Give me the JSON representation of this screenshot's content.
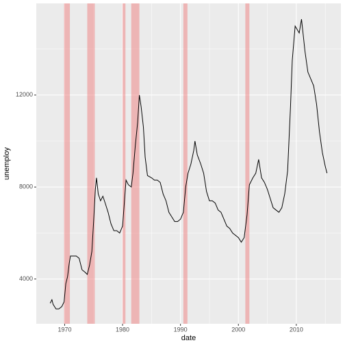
{
  "chart_data": {
    "type": "line",
    "x_label": "date",
    "y_label": "unemploy",
    "xlim": [
      1965.1,
      2017.7
    ],
    "ylim": [
      2052,
      15985
    ],
    "xticks": [
      1970,
      1980,
      1990,
      2000,
      2010
    ],
    "yticks": [
      4000,
      8000,
      12000
    ],
    "grid": true,
    "recession_color": "#f08080",
    "recessions": [
      [
        1969.9,
        1970.9
      ],
      [
        1973.9,
        1975.2
      ],
      [
        1980.0,
        1980.5
      ],
      [
        1981.5,
        1982.9
      ],
      [
        1990.5,
        1991.2
      ],
      [
        2001.2,
        2001.9
      ]
    ],
    "series": [
      {
        "name": "unemploy",
        "color": "#000000",
        "x": [
          1967.5,
          1967.8,
          1968.0,
          1968.5,
          1969.0,
          1969.5,
          1969.9,
          1970.2,
          1970.5,
          1970.8,
          1971.0,
          1971.5,
          1972.0,
          1972.5,
          1973.0,
          1973.5,
          1973.9,
          1974.3,
          1974.7,
          1975.0,
          1975.3,
          1975.5,
          1975.8,
          1976.2,
          1976.6,
          1977.0,
          1977.5,
          1978.0,
          1978.5,
          1979.0,
          1979.5,
          1980.0,
          1980.3,
          1980.6,
          1981.0,
          1981.5,
          1981.8,
          1982.2,
          1982.6,
          1982.9,
          1983.2,
          1983.6,
          1983.9,
          1984.3,
          1985.0,
          1985.5,
          1986.0,
          1986.5,
          1987.0,
          1987.5,
          1988.0,
          1988.5,
          1989.0,
          1989.5,
          1990.0,
          1990.5,
          1990.9,
          1991.3,
          1991.8,
          1992.3,
          1992.5,
          1992.9,
          1993.5,
          1994.0,
          1994.5,
          1995.0,
          1995.5,
          1996.0,
          1996.5,
          1997.0,
          1997.5,
          1998.0,
          1998.5,
          1999.0,
          1999.5,
          2000.0,
          2000.5,
          2001.0,
          2001.5,
          2001.9,
          2002.5,
          2003.0,
          2003.5,
          2004.0,
          2004.5,
          2005.0,
          2005.5,
          2006.0,
          2006.5,
          2007.0,
          2007.5,
          2008.0,
          2008.5,
          2009.0,
          2009.3,
          2009.8,
          2010.5,
          2010.9,
          2011.5,
          2012.0,
          2012.5,
          2013.0,
          2013.5,
          2014.0,
          2014.5,
          2015.0,
          2015.3
        ],
        "values": [
          2944,
          3100,
          2900,
          2700,
          2700,
          2800,
          3000,
          3800,
          4100,
          4700,
          5000,
          5000,
          5000,
          4900,
          4400,
          4300,
          4200,
          4600,
          5200,
          6500,
          7900,
          8400,
          7700,
          7400,
          7600,
          7300,
          6900,
          6400,
          6100,
          6100,
          6000,
          6300,
          7300,
          8300,
          8100,
          8000,
          8600,
          9800,
          10800,
          12000,
          11500,
          10600,
          9300,
          8500,
          8400,
          8300,
          8300,
          8200,
          7700,
          7400,
          6900,
          6700,
          6500,
          6500,
          6600,
          6900,
          8000,
          8600,
          9000,
          9600,
          10000,
          9400,
          9000,
          8600,
          7800,
          7400,
          7400,
          7300,
          7000,
          6900,
          6600,
          6300,
          6200,
          6000,
          5900,
          5800,
          5600,
          5800,
          6800,
          8100,
          8400,
          8600,
          9200,
          8400,
          8200,
          7900,
          7500,
          7100,
          7000,
          6900,
          7100,
          7700,
          8700,
          11500,
          13500,
          15000,
          14700,
          15300,
          13900,
          13000,
          12700,
          12400,
          11600,
          10400,
          9500,
          8900,
          8600
        ]
      }
    ]
  }
}
